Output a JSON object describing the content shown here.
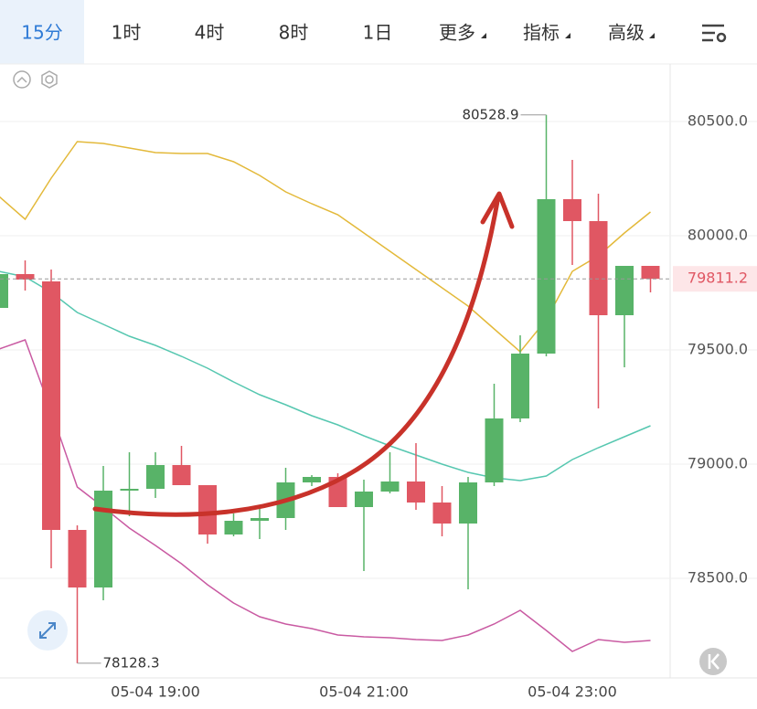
{
  "tabs": [
    "15分",
    "1时",
    "4时",
    "8时",
    "1日",
    "更多",
    "指标",
    "高级"
  ],
  "chart_data": {
    "type": "candlestick",
    "categories": [
      null,
      null,
      null,
      null,
      null,
      null,
      "05-04 19:00",
      null,
      null,
      null,
      null,
      null,
      null,
      null,
      "05-04 21:00",
      null,
      null,
      null,
      null,
      null,
      null,
      null,
      "05-04 23:00",
      null,
      null,
      null
    ],
    "open": [
      79684,
      79832,
      79800,
      78712,
      78460,
      78884,
      78892,
      78996,
      78908,
      78692,
      78752,
      78764,
      78920,
      78944,
      78812,
      78880,
      78924,
      78832,
      78740,
      78920,
      79200,
      79484,
      80160,
      80064,
      79652,
      79868
    ],
    "high": [
      79840,
      79892,
      79852,
      78732,
      78992,
      79052,
      79052,
      79080,
      78908,
      78784,
      78812,
      78984,
      78952,
      78960,
      78932,
      79052,
      79092,
      78904,
      78944,
      79352,
      79564,
      80528.9,
      80332,
      80184,
      79868,
      79868
    ],
    "low": [
      79684,
      79760,
      78544,
      78128.3,
      78404,
      78772,
      78852,
      78908,
      78652,
      78684,
      78672,
      78712,
      78904,
      78812,
      78532,
      78872,
      78800,
      78684,
      78452,
      78904,
      79184,
      79472,
      79872,
      79244,
      79424,
      79752
    ],
    "close": [
      79832,
      79808,
      78712,
      78460,
      78884,
      78892,
      78996,
      78908,
      78692,
      78752,
      78764,
      78920,
      78944,
      78812,
      78880,
      78924,
      78832,
      78740,
      78920,
      79200,
      79484,
      80160,
      80064,
      79652,
      79868,
      79811.2
    ],
    "up_color": "#58b368",
    "down_color": "#e05763",
    "lines": [
      {
        "color": "#e3b93a",
        "values": [
          80172,
          80072,
          80252,
          80412,
          80404,
          80384,
          80364,
          80360,
          80360,
          80324,
          80264,
          80192,
          80140,
          80092,
          80012,
          79932,
          79852,
          79772,
          79692,
          79592,
          79492,
          79632,
          79844,
          79912,
          80012,
          80104
        ]
      },
      {
        "color": "#56c7b0",
        "values": [
          79844,
          79820,
          79752,
          79664,
          79612,
          79560,
          79520,
          79472,
          79420,
          79360,
          79304,
          79260,
          79212,
          79172,
          79124,
          79080,
          79040,
          79000,
          78964,
          78940,
          78928,
          78948,
          79020,
          79072,
          79120,
          79168
        ]
      },
      {
        "color": "#c95aa2",
        "values": [
          79504,
          79544,
          79232,
          78900,
          78812,
          78720,
          78644,
          78564,
          78472,
          78392,
          78332,
          78300,
          78280,
          78252,
          78244,
          78240,
          78232,
          78228,
          78252,
          78300,
          78360,
          78272,
          78180,
          78232,
          78220,
          78228
        ]
      }
    ],
    "ylim": [
      78064,
      80752
    ],
    "yticks": [
      {
        "value": 78500,
        "label": "78500.0"
      },
      {
        "value": 79000,
        "label": "79000.0"
      },
      {
        "value": 79500,
        "label": "79500.0"
      },
      {
        "value": 80000,
        "label": "80000.0"
      },
      {
        "value": 80500,
        "label": "80500.0"
      }
    ],
    "grid": true
  }
}
